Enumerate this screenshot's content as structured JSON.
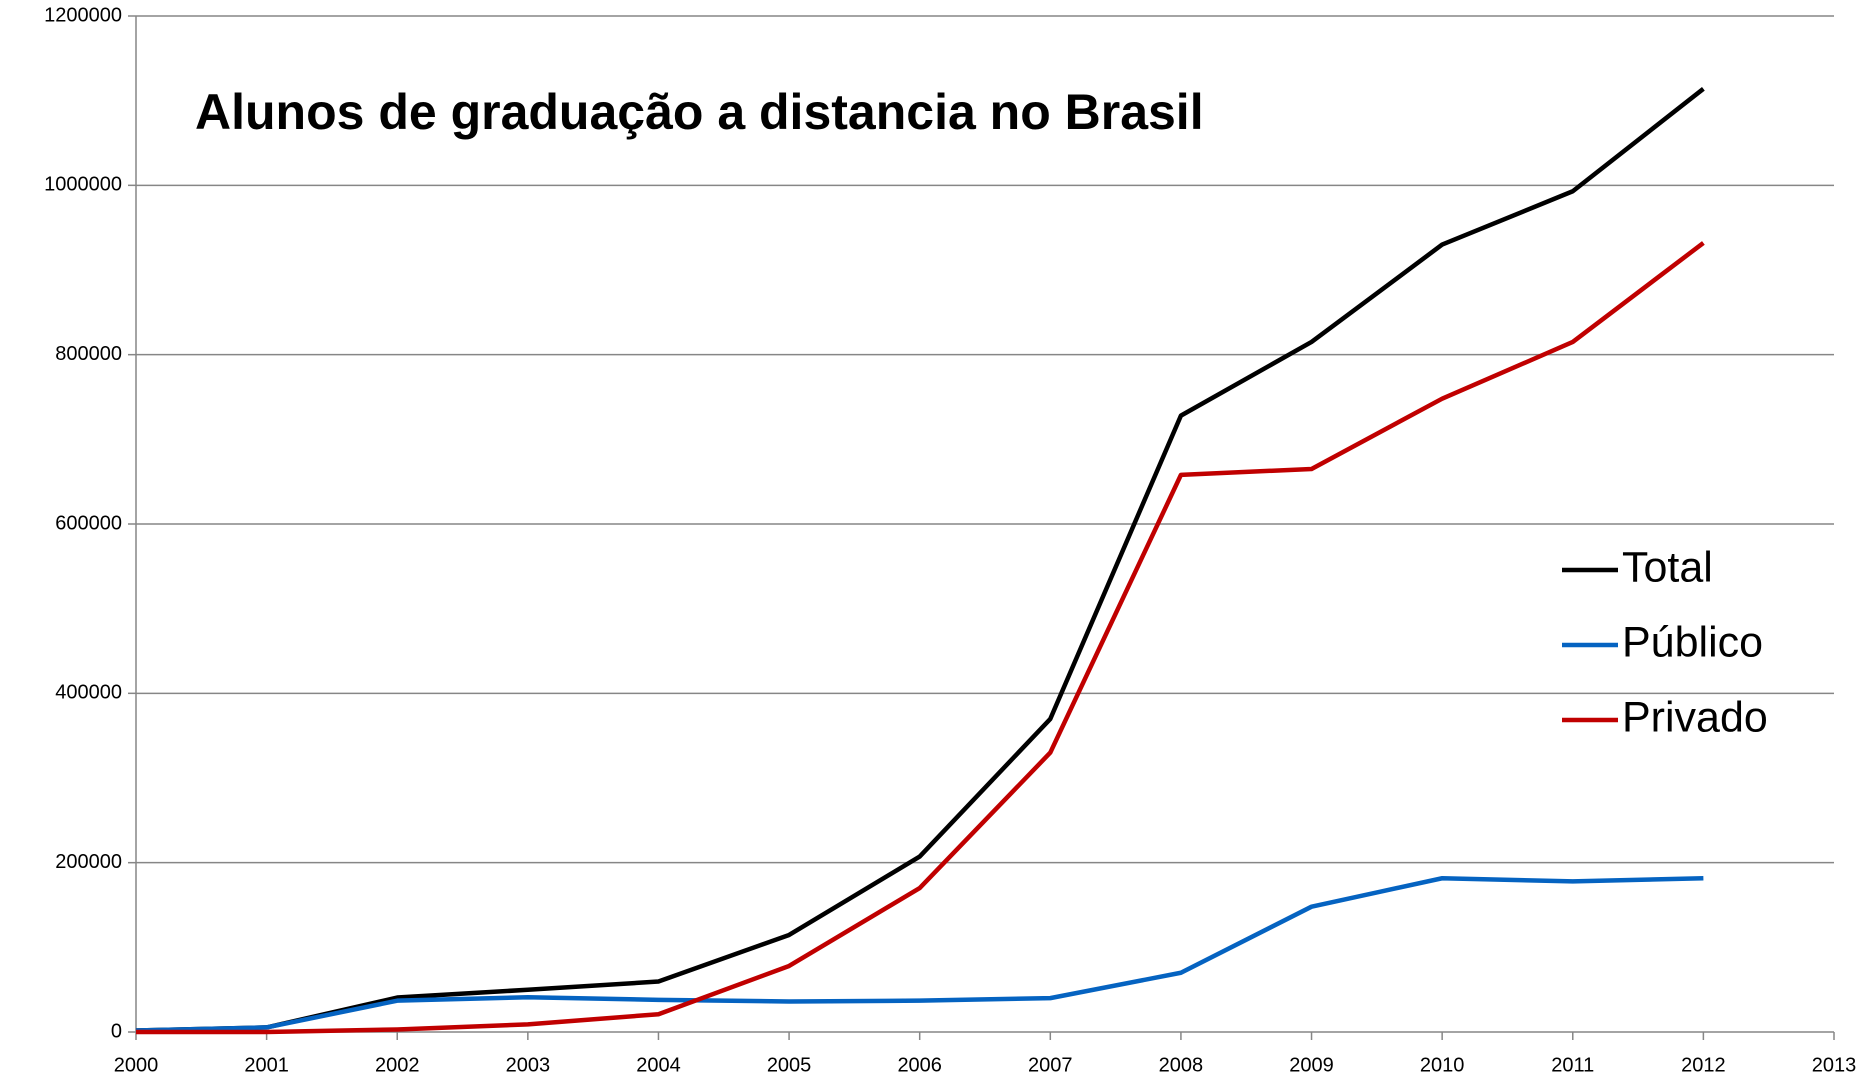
{
  "chart_data": {
    "type": "line",
    "title": "Alunos de graduação a distancia no Brasil",
    "x": [
      2000,
      2001,
      2002,
      2003,
      2004,
      2005,
      2006,
      2007,
      2008,
      2009,
      2010,
      2011,
      2012
    ],
    "series": [
      {
        "name": "Total",
        "color": "#000000",
        "values": [
          1700,
          5400,
          40700,
          49900,
          59600,
          114600,
          207200,
          369800,
          728000,
          815000,
          930000,
          993000,
          1114000
        ]
      },
      {
        "name": "Público",
        "color": "#0563c1",
        "values": [
          1700,
          5400,
          37000,
          41000,
          38000,
          36000,
          37000,
          40000,
          70000,
          148000,
          181600,
          177900,
          181600
        ]
      },
      {
        "name": "Privado",
        "color": "#c00000",
        "values": [
          0,
          0,
          3000,
          9000,
          21000,
          78000,
          170000,
          330000,
          658000,
          665000,
          748000,
          815000,
          932000
        ]
      }
    ],
    "xlim": [
      2000,
      2013
    ],
    "xticks": [
      2000,
      2001,
      2002,
      2003,
      2004,
      2005,
      2006,
      2007,
      2008,
      2009,
      2010,
      2011,
      2012,
      2013
    ],
    "ylim": [
      0,
      1200000
    ],
    "yticks": [
      0,
      200000,
      400000,
      600000,
      800000,
      1000000,
      1200000
    ],
    "grid": true,
    "legend": "right"
  }
}
